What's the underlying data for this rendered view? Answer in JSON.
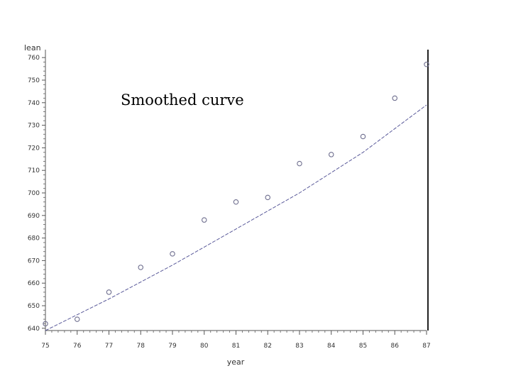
{
  "chart_data": {
    "type": "scatter",
    "title": "",
    "annotation": "Smoothed curve",
    "xlabel": "year",
    "ylabel": "lean",
    "x_ticks": [
      "75",
      "76",
      "77",
      "78",
      "79",
      "80",
      "81",
      "82",
      "83",
      "84",
      "85",
      "86",
      "87"
    ],
    "y_ticks": [
      640,
      650,
      660,
      670,
      680,
      690,
      700,
      710,
      720,
      730,
      740,
      750,
      760
    ],
    "y_tick_labels": [
      "640",
      "650",
      "660",
      "670",
      "680",
      "690",
      "700",
      "710",
      "720",
      "730",
      "740",
      "750",
      "760"
    ],
    "xlim": [
      75,
      87
    ],
    "ylim": [
      639,
      761
    ],
    "grid": false,
    "legend": "none",
    "series": [
      {
        "type": "scatter",
        "marker": "open-circle",
        "color": "#6f6f8f",
        "points": [
          {
            "x": 75,
            "y": 642
          },
          {
            "x": 76,
            "y": 644
          },
          {
            "x": 77,
            "y": 656
          },
          {
            "x": 78,
            "y": 667
          },
          {
            "x": 79,
            "y": 673
          },
          {
            "x": 80,
            "y": 688
          },
          {
            "x": 81,
            "y": 696
          },
          {
            "x": 82,
            "y": 698
          },
          {
            "x": 83,
            "y": 713
          },
          {
            "x": 84,
            "y": 717
          },
          {
            "x": 85,
            "y": 725
          },
          {
            "x": 86,
            "y": 742
          },
          {
            "x": 87,
            "y": 757
          }
        ]
      },
      {
        "type": "line",
        "style": "dashed",
        "color": "#5a5a9a",
        "points": [
          {
            "x": 75,
            "y": 639
          },
          {
            "x": 77,
            "y": 653
          },
          {
            "x": 79,
            "y": 668
          },
          {
            "x": 81,
            "y": 684
          },
          {
            "x": 83,
            "y": 700
          },
          {
            "x": 85,
            "y": 718
          },
          {
            "x": 87,
            "y": 739
          }
        ]
      }
    ]
  }
}
